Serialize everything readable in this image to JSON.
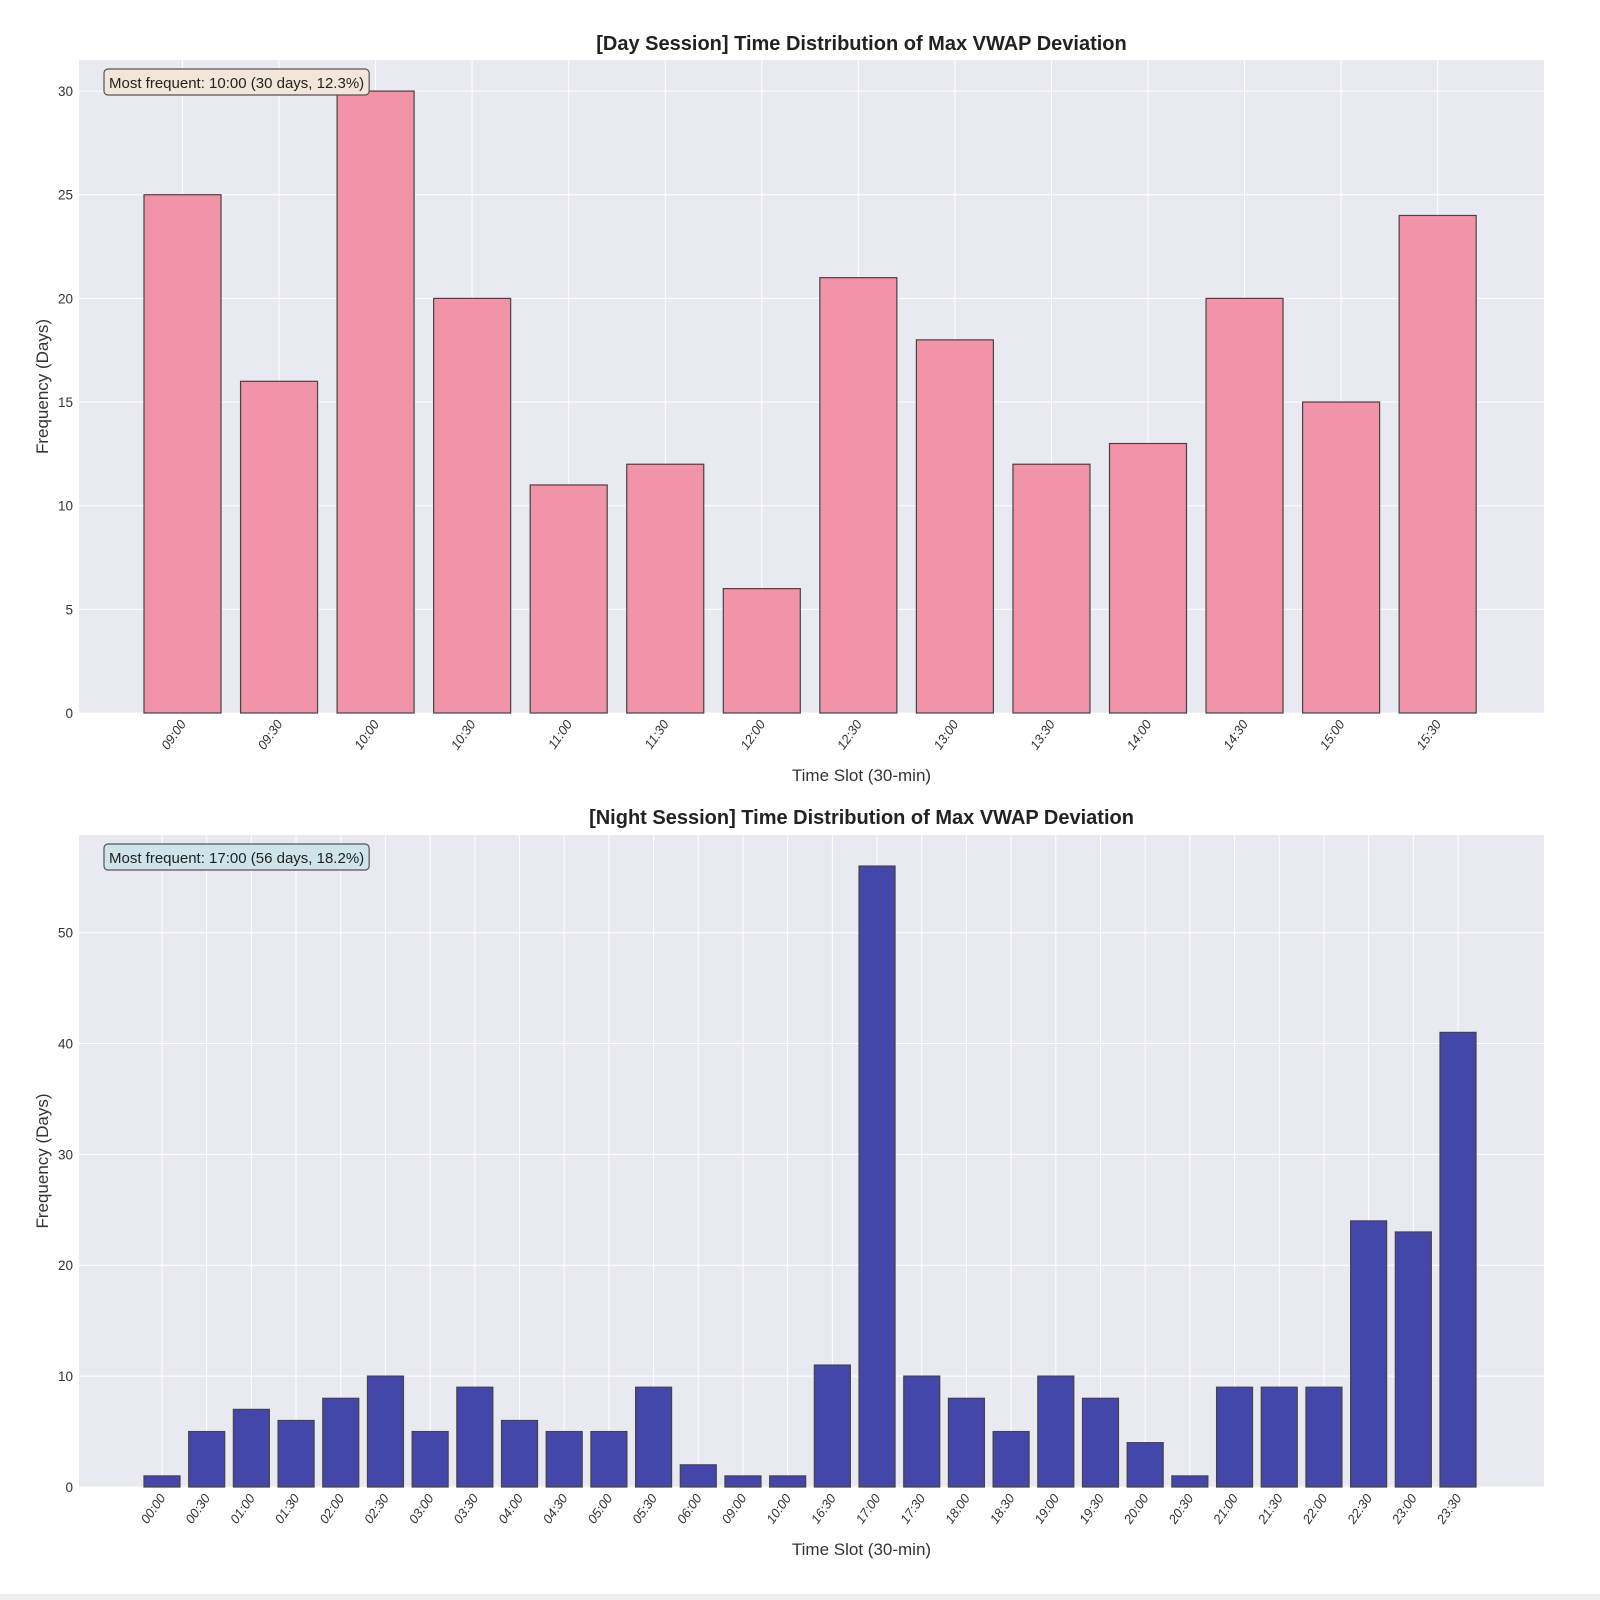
{
  "chart_data": [
    {
      "type": "bar",
      "title": "[Day Session] Time Distribution of Max VWAP Deviation",
      "xlabel": "Time Slot (30-min)",
      "ylabel": "Frequency (Days)",
      "ylim": [
        0,
        31.5
      ],
      "yticks": [
        0,
        5,
        10,
        15,
        20,
        25,
        30
      ],
      "grid": true,
      "categories": [
        "09:00",
        "09:30",
        "10:00",
        "10:30",
        "11:00",
        "11:30",
        "12:00",
        "12:30",
        "13:00",
        "13:30",
        "14:00",
        "14:30",
        "15:00",
        "15:30"
      ],
      "values": [
        25,
        16,
        30,
        20,
        11,
        12,
        6,
        21,
        18,
        12,
        13,
        20,
        15,
        24
      ],
      "bar_color": "#f294a8",
      "annotation": "Most frequent: 10:00 (30 days, 12.3%)",
      "annotation_color": "#f2e6d8",
      "annotation_placement": "top-left"
    },
    {
      "type": "bar",
      "title": "[Night Session] Time Distribution of Max VWAP Deviation",
      "xlabel": "Time Slot (30-min)",
      "ylabel": "Frequency (Days)",
      "ylim": [
        0,
        58.8
      ],
      "yticks": [
        0,
        10,
        20,
        30,
        40,
        50
      ],
      "grid": true,
      "categories": [
        "00:00",
        "00:30",
        "01:00",
        "01:30",
        "02:00",
        "02:30",
        "03:00",
        "03:30",
        "04:00",
        "04:30",
        "05:00",
        "05:30",
        "06:00",
        "09:00",
        "10:00",
        "16:30",
        "17:00",
        "17:30",
        "18:00",
        "18:30",
        "19:00",
        "19:30",
        "20:00",
        "20:30",
        "21:00",
        "21:30",
        "22:00",
        "22:30",
        "23:00",
        "23:30"
      ],
      "values": [
        1,
        5,
        7,
        6,
        8,
        10,
        5,
        9,
        6,
        5,
        5,
        9,
        2,
        1,
        1,
        11,
        56,
        10,
        8,
        5,
        10,
        8,
        4,
        1,
        9,
        9,
        9,
        24,
        23,
        41
      ],
      "bar_color": "#4446a8",
      "annotation": "Most frequent: 17:00 (56 days, 18.2%)",
      "annotation_color": "#cfe3ea",
      "annotation_placement": "top-left"
    }
  ],
  "style": {
    "plot_bg": "#e9e9f2",
    "grid_color": "#ffffff",
    "edge_color": "#444444"
  }
}
